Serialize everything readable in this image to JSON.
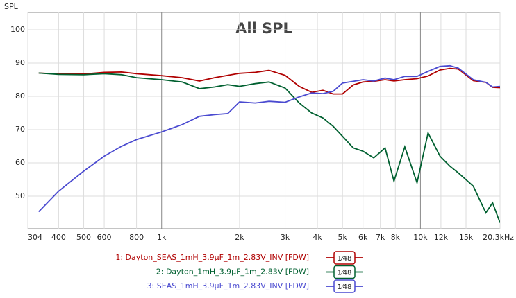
{
  "chart_data": {
    "type": "line",
    "title": "All SPL",
    "y_label": "SPL",
    "x": [
      335,
      400,
      500,
      600,
      700,
      800,
      1000,
      1200,
      1400,
      1600,
      1800,
      2000,
      2300,
      2600,
      3000,
      3400,
      3800,
      4200,
      4600,
      5000,
      5500,
      6000,
      6600,
      7300,
      7900,
      8700,
      9700,
      10700,
      11900,
      13000,
      14000,
      16000,
      17900,
      19000,
      20300
    ],
    "series": [
      {
        "name": "1: Dayton_SEAS_1mH_3.9µF_1m_2.83V_INV [FDW]",
        "color": "#b00000",
        "smoothing": "1⁄48",
        "values": [
          87,
          86.7,
          86.7,
          87.2,
          87.3,
          86.8,
          86.2,
          85.6,
          84.6,
          85.6,
          86.3,
          86.9,
          87.2,
          87.8,
          86.3,
          83,
          81.2,
          81.8,
          80.7,
          80.7,
          83.4,
          84.3,
          84.5,
          85,
          84.6,
          85,
          85.3,
          86.1,
          87.9,
          88.4,
          88.2,
          84.7,
          84.2,
          82.7,
          82.6
        ]
      },
      {
        "name": "2: Dayton_1mH_3.9µF_1m_2.83V [FDW]",
        "color": "#006030",
        "smoothing": "1⁄48",
        "values": [
          87,
          86.6,
          86.5,
          86.8,
          86.5,
          85.6,
          85,
          84.3,
          82.3,
          82.8,
          83.5,
          83,
          83.8,
          84.3,
          82.5,
          78,
          75,
          73.5,
          71,
          68,
          64.5,
          63.5,
          61.5,
          64.5,
          54.5,
          64.8,
          54,
          69,
          62,
          59,
          57,
          53,
          45,
          48,
          42
        ]
      },
      {
        "name": "3: SEAS_1mH_3.9µF_1m_2.83V_INV [FDW]",
        "color": "#4a4ad0",
        "smoothing": "1⁄48",
        "values": [
          45.3,
          51.5,
          57.5,
          62,
          65,
          67,
          69.3,
          71.5,
          74,
          74.5,
          74.8,
          78.3,
          78,
          78.5,
          78.2,
          79.8,
          81,
          80.8,
          81.5,
          84,
          84.5,
          85,
          84.6,
          85.5,
          85,
          86,
          86,
          87.5,
          89,
          89.2,
          88.5,
          85,
          84.2,
          82.8,
          83
        ]
      }
    ],
    "xlim": [
      304,
      20300
    ],
    "x_log": true,
    "xticks": [
      304,
      400,
      500,
      600,
      800,
      {
        "value": 1000,
        "label": "1k"
      },
      {
        "value": 2000,
        "label": "2k"
      },
      {
        "value": 3000,
        "label": "3k"
      },
      {
        "value": 4000,
        "label": "4k"
      },
      {
        "value": 5000,
        "label": "5k"
      },
      {
        "value": 6000,
        "label": "6k"
      },
      {
        "value": 7000,
        "label": "7k"
      },
      {
        "value": 8000,
        "label": "8k"
      },
      {
        "value": 10000,
        "label": "10k"
      },
      {
        "value": 12000,
        "label": "12k"
      },
      {
        "value": 15000,
        "label": "15k"
      },
      {
        "value": 20300,
        "label": "20.3kHz"
      }
    ],
    "ylim": [
      40.2,
      105.2
    ],
    "yticks": [
      50,
      60,
      70,
      80,
      90,
      100
    ],
    "grid": true
  }
}
